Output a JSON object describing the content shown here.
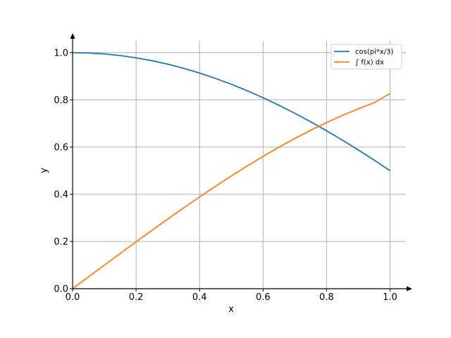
{
  "chart_data": {
    "type": "line",
    "title": "",
    "xlabel": "x",
    "ylabel": "y",
    "xlim": [
      0.0,
      1.05
    ],
    "ylim": [
      0.0,
      1.05
    ],
    "xticks": [
      0.0,
      0.2,
      0.4,
      0.6,
      0.8,
      1.0
    ],
    "yticks": [
      0.0,
      0.2,
      0.4,
      0.6,
      0.8,
      1.0
    ],
    "xtick_labels": [
      "0.0",
      "0.2",
      "0.4",
      "0.6",
      "0.8",
      "1.0"
    ],
    "ytick_labels": [
      "0.0",
      "0.2",
      "0.4",
      "0.6",
      "0.8",
      "1.0"
    ],
    "grid": true,
    "legend_position": "top-right",
    "series": [
      {
        "name": "cos(pi*x/3)",
        "color": "#1f77b4",
        "x": [
          0.0,
          0.05,
          0.1,
          0.15,
          0.2,
          0.25,
          0.3,
          0.35,
          0.4,
          0.45,
          0.5,
          0.55,
          0.6,
          0.65,
          0.7,
          0.75,
          0.8,
          0.85,
          0.9,
          0.95,
          1.0
        ],
        "y": [
          1.0,
          0.9986,
          0.9945,
          0.9877,
          0.9781,
          0.9659,
          0.9511,
          0.9336,
          0.9135,
          0.891,
          0.866,
          0.8387,
          0.809,
          0.7771,
          0.7431,
          0.7071,
          0.6691,
          0.6293,
          0.5878,
          0.5446,
          0.5
        ]
      },
      {
        "name": "∫ f(x) dx",
        "color": "#ff7f0e",
        "x": [
          0.0,
          0.05,
          0.1,
          0.15,
          0.2,
          0.25,
          0.3,
          0.35,
          0.4,
          0.45,
          0.5,
          0.55,
          0.6,
          0.65,
          0.7,
          0.75,
          0.8,
          0.85,
          0.9,
          0.95,
          1.0
        ],
        "y": [
          0.0,
          0.05,
          0.0998,
          0.1494,
          0.1986,
          0.2473,
          0.2953,
          0.3425,
          0.3887,
          0.4338,
          0.4775,
          0.5198,
          0.5604,
          0.5993,
          0.6362,
          0.6711,
          0.7038,
          0.7341,
          0.7621,
          0.7876,
          0.827
        ]
      }
    ]
  }
}
